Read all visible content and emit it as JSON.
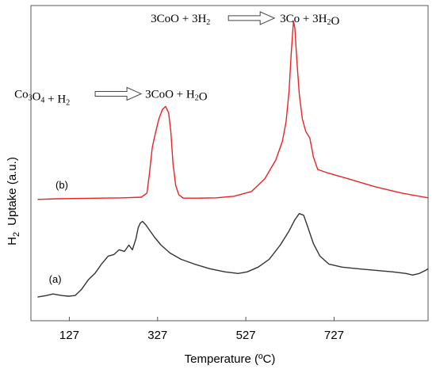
{
  "chart_data": {
    "type": "line",
    "xlabel": "Temperature (ºC)",
    "ylabel_main": "H",
    "ylabel_sub": "2",
    "ylabel_rest": "Uptake (a.u.)",
    "xlim": [
      40,
      940
    ],
    "ylim": [
      0,
      100
    ],
    "x_ticks": [
      127,
      327,
      527,
      727
    ],
    "y_ticks_shown": false,
    "annotations": [
      {
        "id": "reaction-1",
        "lhs": [
          "Co",
          "3",
          "O",
          "4",
          " + H",
          "2"
        ],
        "rhs": [
          "3CoO + H",
          "2",
          "O"
        ],
        "x": 200,
        "y": 72
      },
      {
        "id": "reaction-2",
        "lhs": [
          "3CoO + 3H",
          "2"
        ],
        "rhs": [
          "3Co + 3H",
          "2",
          "O"
        ],
        "x": 590,
        "y": 96
      }
    ],
    "series": [
      {
        "name": "(a)",
        "color": "#333333",
        "label_xy": [
          95,
          12
        ],
        "points": [
          [
            55,
            7.5
          ],
          [
            75,
            8.0
          ],
          [
            90,
            8.5
          ],
          [
            110,
            8.0
          ],
          [
            125,
            7.8
          ],
          [
            140,
            8.0
          ],
          [
            155,
            10.0
          ],
          [
            170,
            13.0
          ],
          [
            185,
            15.0
          ],
          [
            200,
            18.0
          ],
          [
            215,
            20.5
          ],
          [
            228,
            21.0
          ],
          [
            240,
            22.5
          ],
          [
            252,
            22.0
          ],
          [
            262,
            24.0
          ],
          [
            270,
            22.5
          ],
          [
            278,
            26.0
          ],
          [
            283,
            29.5
          ],
          [
            288,
            31.0
          ],
          [
            293,
            31.5
          ],
          [
            300,
            30.5
          ],
          [
            310,
            28.5
          ],
          [
            320,
            26.5
          ],
          [
            335,
            24.0
          ],
          [
            355,
            21.5
          ],
          [
            380,
            19.5
          ],
          [
            410,
            18.0
          ],
          [
            445,
            16.5
          ],
          [
            480,
            15.5
          ],
          [
            510,
            15.0
          ],
          [
            530,
            15.5
          ],
          [
            555,
            17.0
          ],
          [
            580,
            19.5
          ],
          [
            605,
            24.0
          ],
          [
            625,
            28.5
          ],
          [
            638,
            32.0
          ],
          [
            648,
            34.0
          ],
          [
            658,
            33.5
          ],
          [
            668,
            29.5
          ],
          [
            680,
            24.5
          ],
          [
            695,
            20.5
          ],
          [
            715,
            18.0
          ],
          [
            745,
            17.0
          ],
          [
            780,
            16.5
          ],
          [
            820,
            16.0
          ],
          [
            860,
            15.5
          ],
          [
            890,
            15.0
          ],
          [
            905,
            14.5
          ],
          [
            920,
            15.0
          ],
          [
            935,
            16.0
          ],
          [
            940,
            16.5
          ]
        ]
      },
      {
        "name": "(b)",
        "color": "#ee2222",
        "label_xy": [
          110,
          42
        ],
        "points": [
          [
            55,
            38.5
          ],
          [
            100,
            38.7
          ],
          [
            150,
            38.8
          ],
          [
            200,
            38.9
          ],
          [
            250,
            39.0
          ],
          [
            290,
            39.2
          ],
          [
            303,
            40.5
          ],
          [
            308,
            46.0
          ],
          [
            315,
            55.0
          ],
          [
            322,
            59.5
          ],
          [
            330,
            64.0
          ],
          [
            338,
            67.0
          ],
          [
            345,
            68.0
          ],
          [
            352,
            66.0
          ],
          [
            357,
            60.0
          ],
          [
            362,
            50.0
          ],
          [
            368,
            43.0
          ],
          [
            375,
            40.0
          ],
          [
            385,
            38.9
          ],
          [
            420,
            38.9
          ],
          [
            460,
            39.0
          ],
          [
            500,
            39.5
          ],
          [
            540,
            41.0
          ],
          [
            570,
            45.0
          ],
          [
            595,
            51.0
          ],
          [
            610,
            57.0
          ],
          [
            618,
            63.0
          ],
          [
            625,
            73.0
          ],
          [
            630,
            85.0
          ],
          [
            635,
            95.0
          ],
          [
            638,
            93.0
          ],
          [
            642,
            84.0
          ],
          [
            648,
            72.0
          ],
          [
            655,
            64.0
          ],
          [
            663,
            60.0
          ],
          [
            672,
            58.0
          ],
          [
            680,
            52.0
          ],
          [
            690,
            48.0
          ],
          [
            710,
            47.0
          ],
          [
            760,
            45.0
          ],
          [
            820,
            42.5
          ],
          [
            880,
            40.5
          ],
          [
            940,
            39.0
          ]
        ]
      }
    ]
  }
}
